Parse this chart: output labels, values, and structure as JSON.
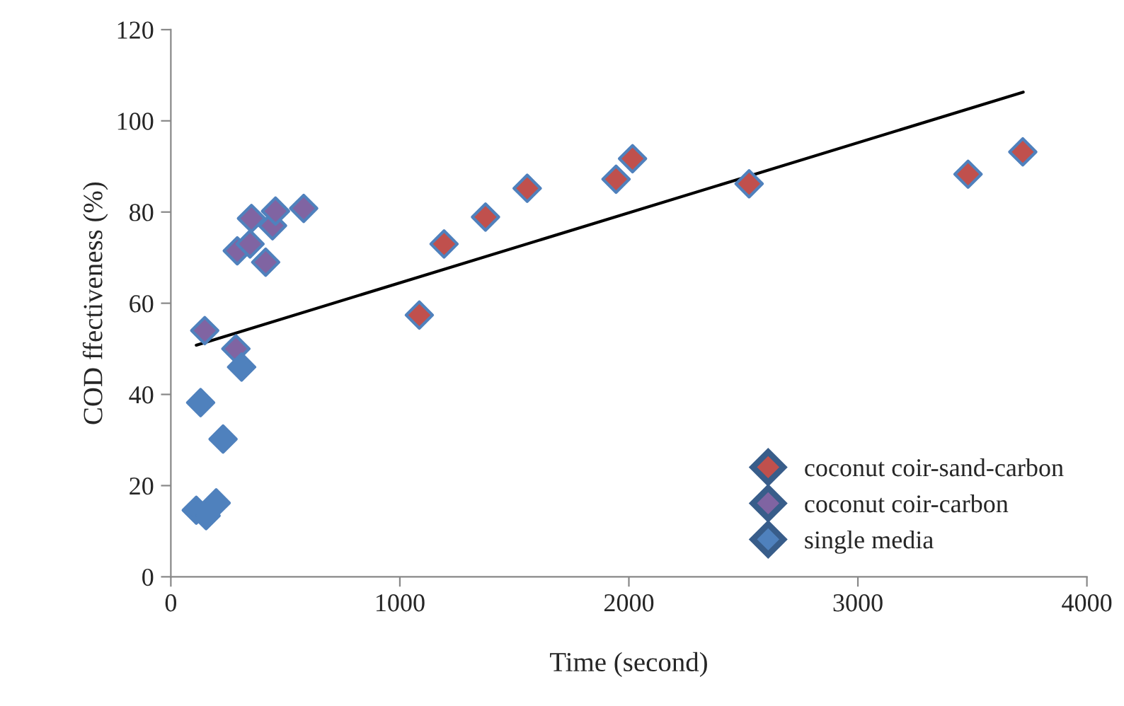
{
  "chart_data": {
    "type": "scatter",
    "xlabel": "Time (second)",
    "ylabel": "COD ffectiveness (%)",
    "xlim": [
      0,
      4000
    ],
    "xticks": [
      0,
      1000,
      2000,
      3000,
      4000
    ],
    "ylim": [
      0,
      120
    ],
    "yticks": [
      0,
      20,
      40,
      60,
      80,
      100,
      120
    ],
    "grid": false,
    "legend": "bottom right",
    "marker": "diamond",
    "series": [
      {
        "name": "coconut coir-sand-carbon",
        "color": "#c0504d",
        "x": [
          1085,
          1193,
          1374,
          1556,
          1944,
          2016,
          2525,
          3481,
          3720
        ],
        "values": [
          57.4,
          73,
          78.9,
          85.2,
          87.2,
          91.7,
          86.2,
          88.3,
          93.2
        ]
      },
      {
        "name": "coconut coir-carbon",
        "color": "#8064a2",
        "x": [
          148,
          284,
          290,
          346,
          352,
          414,
          444,
          457,
          580
        ],
        "values": [
          54,
          50,
          71.5,
          73,
          78.6,
          69,
          77,
          80.2,
          80.8
        ]
      },
      {
        "name": "single media",
        "color": "#4f81bd",
        "x": [
          111,
          130,
          154,
          198,
          228,
          309
        ],
        "values": [
          14.6,
          38.2,
          13.4,
          16.2,
          30.2,
          46.0
        ]
      },
      {
        "type": "line",
        "color": "#000000",
        "marker": "none",
        "line_style": "solid",
        "x": [
          111,
          3722
        ],
        "values": [
          50.8,
          106.3
        ]
      }
    ]
  }
}
